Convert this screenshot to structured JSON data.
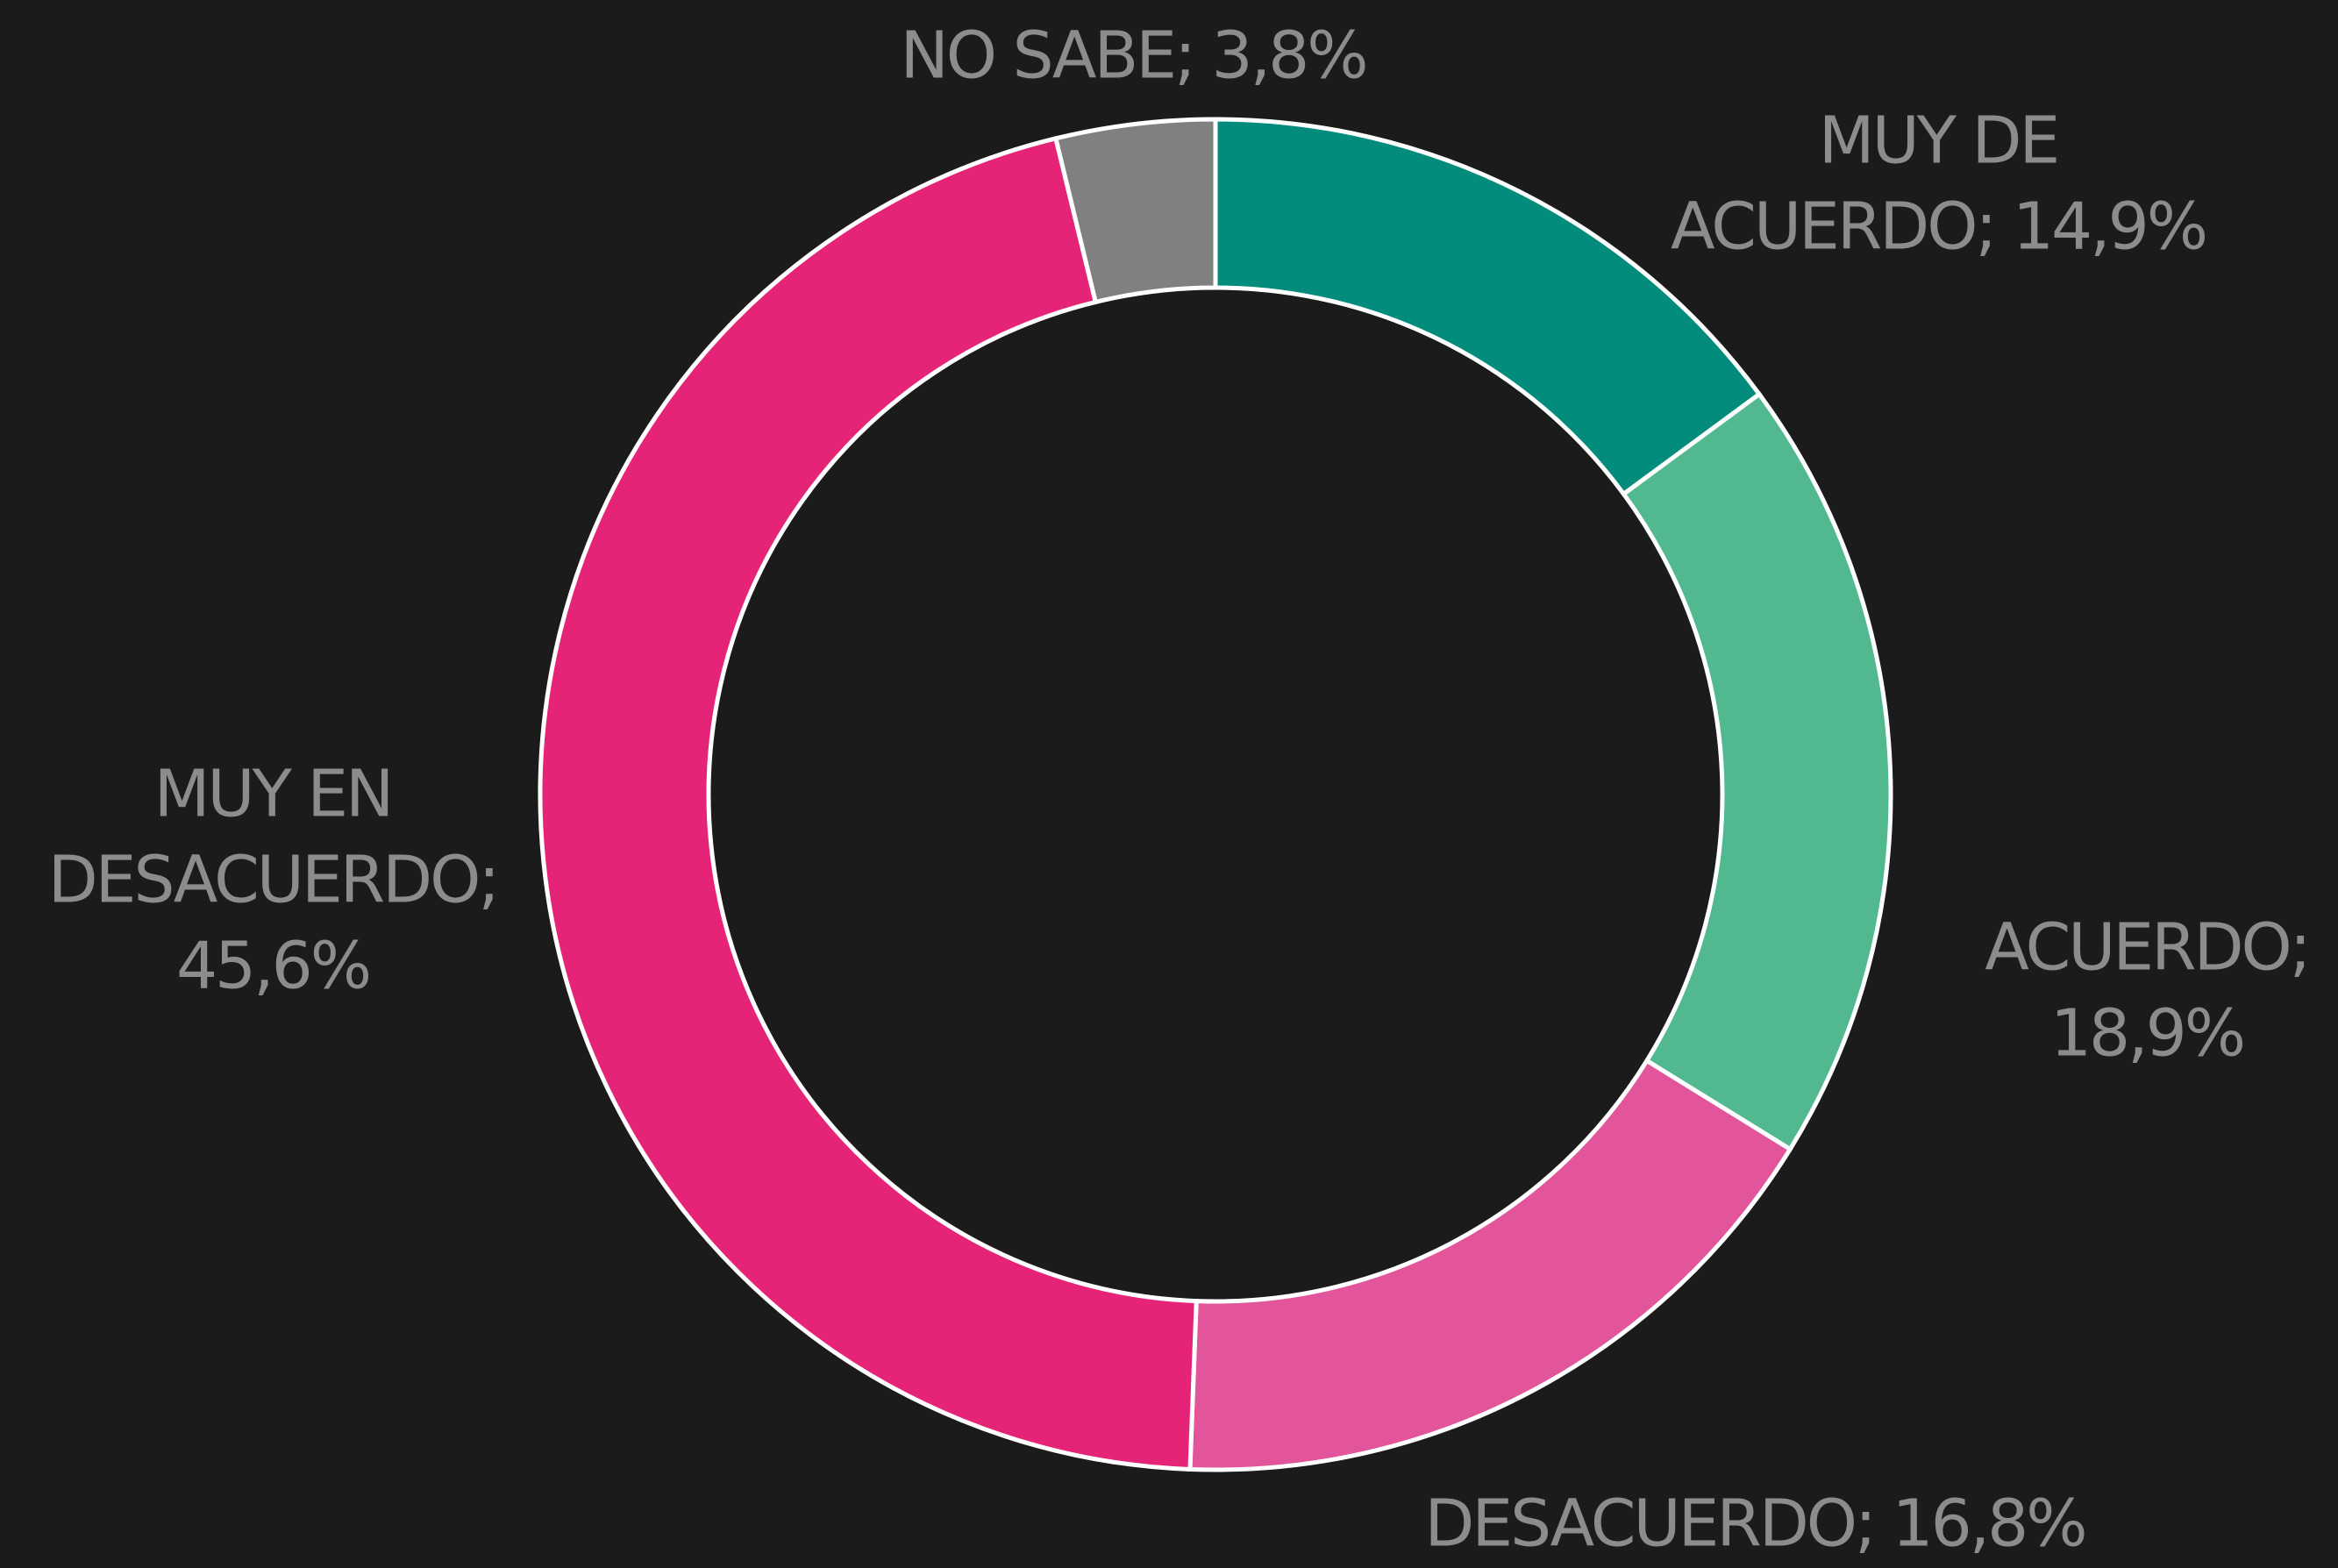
{
  "chart_data": {
    "type": "donut",
    "categories": [
      "MUY DE ACUERDO",
      "ACUERDO",
      "DESACUERDO",
      "MUY EN DESACUERDO",
      "NO SABE"
    ],
    "values": [
      14.9,
      18.9,
      16.8,
      45.6,
      3.8
    ],
    "value_labels": [
      [
        "MUY DE",
        "ACUERDO; 14,9%"
      ],
      [
        "ACUERDO;",
        "18,9%"
      ],
      [
        "DESACUERDO; 16,8%"
      ],
      [
        "MUY EN",
        "DESACUERDO;",
        "45,6%"
      ],
      [
        "NO SABE; 3,8%"
      ]
    ],
    "colors": [
      "#038c7c",
      "#52b88f",
      "#e2559a",
      "#e52478",
      "#808080"
    ]
  }
}
